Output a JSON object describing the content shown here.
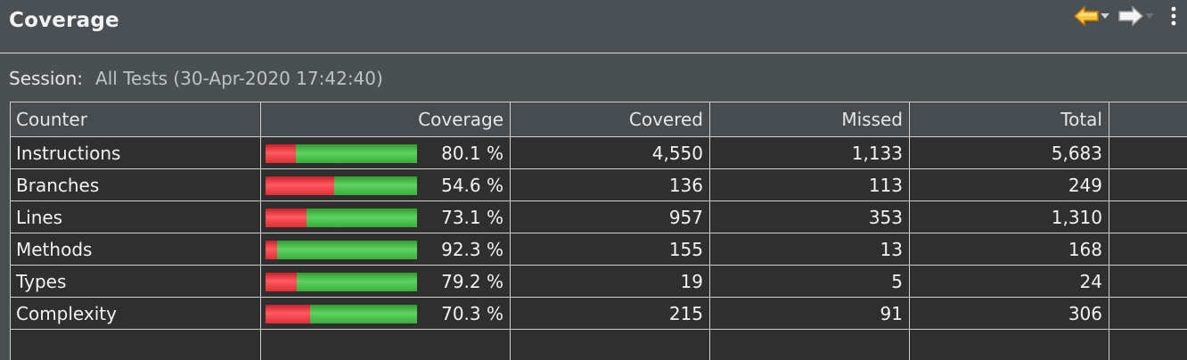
{
  "view": {
    "title": "Coverage",
    "toolbar": {
      "back_icon": "back-arrow-icon",
      "forward_icon": "forward-arrow-icon",
      "menu_icon": "view-menu-icon"
    }
  },
  "session": {
    "label": "Session:",
    "value": "All Tests (30-Apr-2020 17:42:40)"
  },
  "table": {
    "columns": [
      "Counter",
      "Coverage",
      "Covered",
      "Missed",
      "Total"
    ],
    "rows": [
      {
        "counter": "Instructions",
        "coverage": "80.1 %",
        "coverage_fraction": 0.801,
        "covered": "4,550",
        "missed": "1,133",
        "total": "5,683"
      },
      {
        "counter": "Branches",
        "coverage": "54.6 %",
        "coverage_fraction": 0.546,
        "covered": "136",
        "missed": "113",
        "total": "249"
      },
      {
        "counter": "Lines",
        "coverage": "73.1 %",
        "coverage_fraction": 0.731,
        "covered": "957",
        "missed": "353",
        "total": "1,310"
      },
      {
        "counter": "Methods",
        "coverage": "92.3 %",
        "coverage_fraction": 0.923,
        "covered": "155",
        "missed": "13",
        "total": "168"
      },
      {
        "counter": "Types",
        "coverage": "79.2 %",
        "coverage_fraction": 0.792,
        "covered": "19",
        "missed": "5",
        "total": "24"
      },
      {
        "counter": "Complexity",
        "coverage": "70.3 %",
        "coverage_fraction": 0.703,
        "covered": "215",
        "missed": "91",
        "total": "306"
      }
    ]
  },
  "colors": {
    "covered": "#4cc44c",
    "missed": "#f04048",
    "background": "#2f2f2f",
    "header": "#474c50",
    "back_arrow": "#f0a51e"
  }
}
